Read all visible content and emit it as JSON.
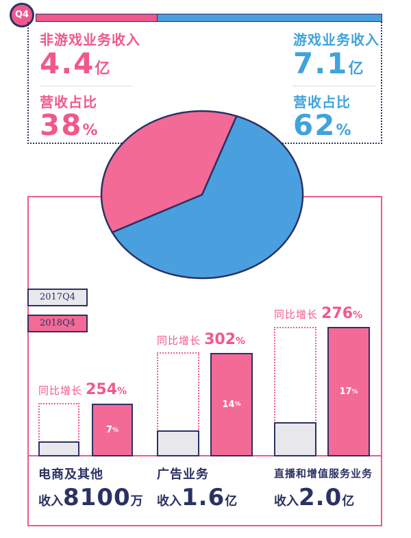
{
  "badge": "Q4",
  "colors": {
    "pink": "#f0588b",
    "blue": "#4a9fdf",
    "navy": "#2b3163",
    "gray": "#e8e8ec"
  },
  "summary": {
    "non_game": {
      "label": "非游戏业务收入",
      "value": "4.4",
      "unit": "亿",
      "share_label": "营收占比",
      "share_value": "38",
      "share_unit": "%"
    },
    "game": {
      "label": "游戏业务收入",
      "value": "7.1",
      "unit": "亿",
      "share_label": "营收占比",
      "share_value": "62",
      "share_unit": "%"
    }
  },
  "legend": {
    "y2017": "2017Q4",
    "y2018": "2018Q4"
  },
  "growth_label": "同比增长",
  "categories": [
    {
      "name": "电商及其他",
      "revenue_label": "收入",
      "revenue_value": "8100",
      "revenue_unit": "万",
      "growth": "254",
      "growth_unit": "%",
      "share_2018": "7",
      "share_unit": "%"
    },
    {
      "name": "广告业务",
      "revenue_label": "收入",
      "revenue_value": "1.6",
      "revenue_unit": "亿",
      "growth": "302",
      "growth_unit": "%",
      "share_2018": "14",
      "share_unit": "%"
    },
    {
      "name": "直播和增值服务业务",
      "revenue_label": "收入",
      "revenue_value": "2.0",
      "revenue_unit": "亿",
      "growth": "276",
      "growth_unit": "%",
      "share_2018": "17",
      "share_unit": "%"
    }
  ],
  "chart_data": [
    {
      "type": "pie",
      "categories": [
        "非游戏业务收入",
        "游戏业务收入"
      ],
      "values": [
        38,
        62
      ]
    },
    {
      "type": "bar",
      "categories": [
        "电商及其他",
        "广告业务",
        "直播和增值服务业务"
      ],
      "series": [
        {
          "name": "2017Q4",
          "values": [
            0.23,
            0.4,
            0.53
          ]
        },
        {
          "name": "2018Q4",
          "values": [
            0.81,
            1.6,
            2.0
          ]
        }
      ],
      "data_labels_2018": [
        "7%",
        "14%",
        "17%"
      ],
      "growth_labels": [
        "254%",
        "302%",
        "276%"
      ],
      "ylabel": "",
      "ylim": [
        0,
        2.0
      ]
    }
  ]
}
